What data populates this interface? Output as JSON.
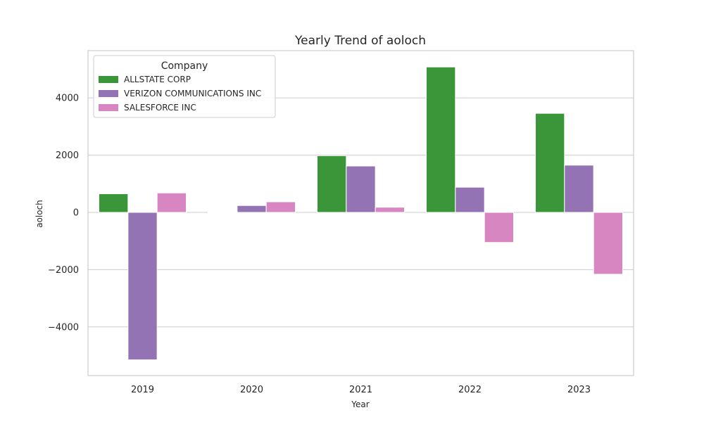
{
  "chart_data": {
    "type": "bar",
    "title": "Yearly Trend of aoloch",
    "xlabel": "Year",
    "ylabel": "aoloch",
    "categories": [
      "2019",
      "2020",
      "2021",
      "2022",
      "2023"
    ],
    "ylim": [
      -5700,
      5650
    ],
    "yticks": [
      -4000,
      -2000,
      0,
      2000,
      4000
    ],
    "ytick_labels": [
      "−4000",
      "−2000",
      "0",
      "2000",
      "4000"
    ],
    "grid": true,
    "legend": {
      "title": "Company",
      "position": "top-left"
    },
    "series": [
      {
        "name": "ALLSTATE CORP",
        "color": "#3a9639",
        "values": [
          650,
          20,
          1980,
          5080,
          3460
        ]
      },
      {
        "name": "VERIZON COMMUNICATIONS INC",
        "color": "#9473b5",
        "values": [
          -5150,
          240,
          1620,
          880,
          1650
        ]
      },
      {
        "name": "SALESFORCE INC",
        "color": "#d786c2",
        "values": [
          680,
          370,
          180,
          -1050,
          -2160
        ]
      }
    ]
  }
}
